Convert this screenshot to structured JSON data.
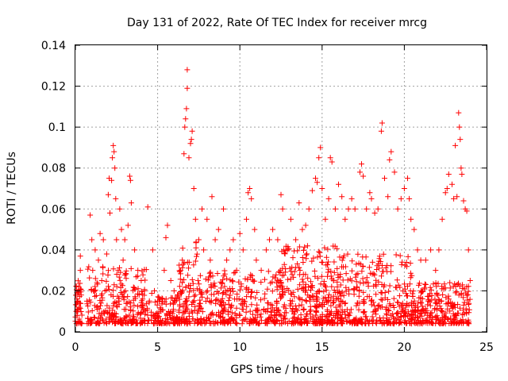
{
  "chart_data": {
    "type": "scatter",
    "title": "Day 131 of 2022, Rate Of TEC Index for receiver mrcg",
    "xlabel": "GPS time / hours",
    "ylabel": "ROTI / TECUs",
    "xlim": [
      0,
      25
    ],
    "ylim": [
      0,
      0.14
    ],
    "xticks": [
      0,
      5,
      10,
      15,
      20,
      25
    ],
    "yticks": [
      0,
      0.02,
      0.04,
      0.06,
      0.08,
      0.1,
      0.12,
      0.14
    ],
    "xtick_labels": [
      "0",
      "5",
      "10",
      "15",
      "20",
      "25"
    ],
    "ytick_labels": [
      "0",
      "0.02",
      "0.04",
      "0.06",
      "0.08",
      "0.1",
      "0.12",
      "0.14"
    ],
    "grid": true,
    "legend": false,
    "marker": "plus",
    "color": "#ff0000",
    "series": [
      {
        "points": [
          [
            0.1,
            0.008
          ],
          [
            0.15,
            0.015
          ],
          [
            0.2,
            0.022
          ],
          [
            0.25,
            0.012
          ],
          [
            0.3,
            0.03
          ],
          [
            0.3,
            0.037
          ],
          [
            0.35,
            0.018
          ],
          [
            0.05,
            0.01
          ],
          [
            0.9,
            0.057
          ],
          [
            1.0,
            0.045
          ],
          [
            1.05,
            0.03
          ],
          [
            1.1,
            0.02
          ],
          [
            1.2,
            0.04
          ],
          [
            1.3,
            0.012
          ],
          [
            1.4,
            0.035
          ],
          [
            1.5,
            0.048
          ],
          [
            1.6,
            0.025
          ],
          [
            1.7,
            0.045
          ],
          [
            1.8,
            0.02
          ],
          [
            1.9,
            0.038
          ],
          [
            2.0,
            0.067
          ],
          [
            2.05,
            0.075
          ],
          [
            2.1,
            0.058
          ],
          [
            2.2,
            0.074
          ],
          [
            2.25,
            0.085
          ],
          [
            2.3,
            0.091
          ],
          [
            2.35,
            0.088
          ],
          [
            2.4,
            0.08
          ],
          [
            2.45,
            0.065
          ],
          [
            2.5,
            0.045
          ],
          [
            2.6,
            0.03
          ],
          [
            2.7,
            0.06
          ],
          [
            2.8,
            0.05
          ],
          [
            2.9,
            0.035
          ],
          [
            3.0,
            0.045
          ],
          [
            3.2,
            0.052
          ],
          [
            3.3,
            0.076
          ],
          [
            3.35,
            0.074
          ],
          [
            3.4,
            0.063
          ],
          [
            3.6,
            0.04
          ],
          [
            3.8,
            0.03
          ],
          [
            4.0,
            0.025
          ],
          [
            4.2,
            0.02
          ],
          [
            4.4,
            0.061
          ],
          [
            4.5,
            0.015
          ],
          [
            4.7,
            0.04
          ],
          [
            4.8,
            0.02
          ],
          [
            5.0,
            0.015
          ],
          [
            5.2,
            0.01
          ],
          [
            5.4,
            0.03
          ],
          [
            5.5,
            0.046
          ],
          [
            5.6,
            0.052
          ],
          [
            5.8,
            0.025
          ],
          [
            6.0,
            0.02
          ],
          [
            6.2,
            0.018
          ],
          [
            6.4,
            0.03
          ],
          [
            6.5,
            0.035
          ],
          [
            6.6,
            0.087
          ],
          [
            6.65,
            0.1
          ],
          [
            6.7,
            0.104
          ],
          [
            6.75,
            0.109
          ],
          [
            6.8,
            0.119
          ],
          [
            6.8,
            0.128
          ],
          [
            6.9,
            0.085
          ],
          [
            7.0,
            0.092
          ],
          [
            7.05,
            0.094
          ],
          [
            7.1,
            0.098
          ],
          [
            7.2,
            0.07
          ],
          [
            7.3,
            0.055
          ],
          [
            7.5,
            0.045
          ],
          [
            7.7,
            0.06
          ],
          [
            7.8,
            0.04
          ],
          [
            8.0,
            0.055
          ],
          [
            8.2,
            0.035
          ],
          [
            8.3,
            0.066
          ],
          [
            8.5,
            0.045
          ],
          [
            8.7,
            0.05
          ],
          [
            9.0,
            0.06
          ],
          [
            9.2,
            0.035
          ],
          [
            9.4,
            0.04
          ],
          [
            9.6,
            0.045
          ],
          [
            9.8,
            0.03
          ],
          [
            10.0,
            0.048
          ],
          [
            10.2,
            0.04
          ],
          [
            10.4,
            0.055
          ],
          [
            10.5,
            0.068
          ],
          [
            10.6,
            0.07
          ],
          [
            10.7,
            0.065
          ],
          [
            10.9,
            0.05
          ],
          [
            11.0,
            0.035
          ],
          [
            11.3,
            0.03
          ],
          [
            11.6,
            0.04
          ],
          [
            11.8,
            0.045
          ],
          [
            12.0,
            0.05
          ],
          [
            12.3,
            0.045
          ],
          [
            12.5,
            0.067
          ],
          [
            12.6,
            0.06
          ],
          [
            12.9,
            0.04
          ],
          [
            13.1,
            0.055
          ],
          [
            13.4,
            0.045
          ],
          [
            13.6,
            0.063
          ],
          [
            13.8,
            0.05
          ],
          [
            14.0,
            0.052
          ],
          [
            14.2,
            0.06
          ],
          [
            14.4,
            0.069
          ],
          [
            14.6,
            0.075
          ],
          [
            14.7,
            0.073
          ],
          [
            14.8,
            0.085
          ],
          [
            14.9,
            0.09
          ],
          [
            15.0,
            0.07
          ],
          [
            15.2,
            0.055
          ],
          [
            15.4,
            0.065
          ],
          [
            15.5,
            0.085
          ],
          [
            15.6,
            0.083
          ],
          [
            15.8,
            0.06
          ],
          [
            16.0,
            0.072
          ],
          [
            16.2,
            0.066
          ],
          [
            16.4,
            0.055
          ],
          [
            16.6,
            0.06
          ],
          [
            16.8,
            0.065
          ],
          [
            17.0,
            0.06
          ],
          [
            17.3,
            0.078
          ],
          [
            17.4,
            0.082
          ],
          [
            17.5,
            0.076
          ],
          [
            17.7,
            0.06
          ],
          [
            17.9,
            0.068
          ],
          [
            18.0,
            0.065
          ],
          [
            18.2,
            0.058
          ],
          [
            18.4,
            0.06
          ],
          [
            18.6,
            0.098
          ],
          [
            18.65,
            0.102
          ],
          [
            18.8,
            0.075
          ],
          [
            19.0,
            0.066
          ],
          [
            19.1,
            0.084
          ],
          [
            19.2,
            0.088
          ],
          [
            19.4,
            0.078
          ],
          [
            19.6,
            0.06
          ],
          [
            19.8,
            0.065
          ],
          [
            20.0,
            0.07
          ],
          [
            20.2,
            0.075
          ],
          [
            20.3,
            0.065
          ],
          [
            20.4,
            0.055
          ],
          [
            20.6,
            0.05
          ],
          [
            20.8,
            0.04
          ],
          [
            21.0,
            0.035
          ],
          [
            21.3,
            0.035
          ],
          [
            21.6,
            0.04
          ],
          [
            21.9,
            0.03
          ],
          [
            22.1,
            0.04
          ],
          [
            22.3,
            0.055
          ],
          [
            22.5,
            0.068
          ],
          [
            22.6,
            0.07
          ],
          [
            22.7,
            0.077
          ],
          [
            22.9,
            0.072
          ],
          [
            23.0,
            0.065
          ],
          [
            23.1,
            0.091
          ],
          [
            23.2,
            0.066
          ],
          [
            23.3,
            0.107
          ],
          [
            23.35,
            0.1
          ],
          [
            23.4,
            0.094
          ],
          [
            23.45,
            0.08
          ],
          [
            23.5,
            0.077
          ],
          [
            23.6,
            0.064
          ],
          [
            23.7,
            0.06
          ],
          [
            23.8,
            0.059
          ],
          [
            23.9,
            0.04
          ],
          [
            24.0,
            0.025
          ]
        ],
        "density_profile": [
          {
            "x_range": [
              0,
              0.4
            ],
            "y_range": [
              0.004,
              0.025
            ],
            "count": 40
          },
          {
            "x_range": [
              0.7,
              4.5
            ],
            "y_range": [
              0.004,
              0.032
            ],
            "count": 260
          },
          {
            "x_range": [
              4.6,
              6.3
            ],
            "y_range": [
              0.004,
              0.02
            ],
            "count": 110
          },
          {
            "x_range": [
              6.3,
              7.5
            ],
            "y_range": [
              0.004,
              0.045
            ],
            "count": 110
          },
          {
            "x_range": [
              7.5,
              12.5
            ],
            "y_range": [
              0.004,
              0.03
            ],
            "count": 330
          },
          {
            "x_range": [
              12.5,
              16.0
            ],
            "y_range": [
              0.004,
              0.042
            ],
            "count": 330
          },
          {
            "x_range": [
              16.0,
              20.5
            ],
            "y_range": [
              0.004,
              0.038
            ],
            "count": 340
          },
          {
            "x_range": [
              20.5,
              24.0
            ],
            "y_range": [
              0.004,
              0.025
            ],
            "count": 260
          }
        ]
      }
    ]
  }
}
